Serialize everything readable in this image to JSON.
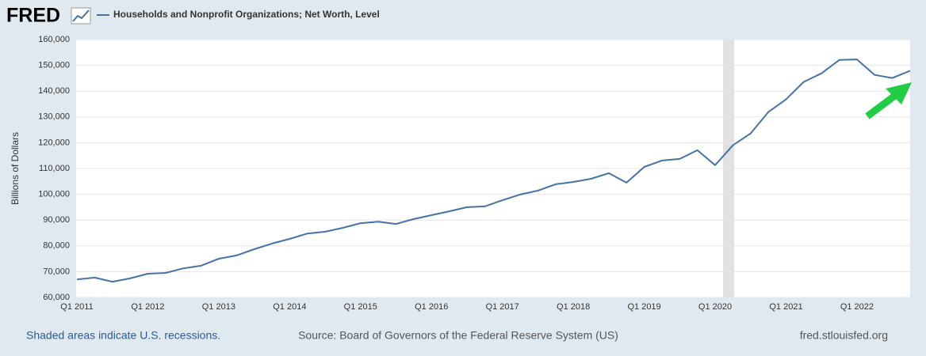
{
  "chart_data": {
    "type": "line",
    "logo": "FRED",
    "series": [
      {
        "name": "Households and Nonprofit Organizations; Net Worth, Level",
        "color": "#4572a7",
        "values": [
          67000,
          67700,
          66100,
          67400,
          69200,
          69500,
          71300,
          72300,
          75000,
          76300,
          78700,
          80900,
          82700,
          84800,
          85500,
          87000,
          88800,
          89400,
          88500,
          90400,
          91900,
          93400,
          95000,
          95300,
          97700,
          99900,
          101400,
          103900,
          104800,
          106000,
          108200,
          104500,
          110600,
          113100,
          113700,
          117100,
          111300,
          119000,
          123600,
          131900,
          136800,
          143600,
          146900,
          152100,
          152300,
          146300,
          145100,
          147900
        ]
      }
    ],
    "categories": [
      "Q1 2011",
      null,
      null,
      null,
      "Q1 2012",
      null,
      null,
      null,
      "Q1 2013",
      null,
      null,
      null,
      "Q1 2014",
      null,
      null,
      null,
      "Q1 2015",
      null,
      null,
      null,
      "Q1 2016",
      null,
      null,
      null,
      "Q1 2017",
      null,
      null,
      null,
      "Q1 2018",
      null,
      null,
      null,
      "Q1 2019",
      null,
      null,
      null,
      "Q1 2020",
      null,
      null,
      null,
      "Q1 2021",
      null,
      null,
      null,
      "Q1 2022",
      null,
      null,
      null
    ],
    "y_label": "Billions of Dollars",
    "ylim": [
      60000,
      160000
    ],
    "yticks": [
      {
        "value": 60000,
        "label": "60,000"
      },
      {
        "value": 70000,
        "label": "70,000"
      },
      {
        "value": 80000,
        "label": "80,000"
      },
      {
        "value": 90000,
        "label": "90,000"
      },
      {
        "value": 100000,
        "label": "100,000"
      },
      {
        "value": 110000,
        "label": "110,000"
      },
      {
        "value": 120000,
        "label": "120,000"
      },
      {
        "value": 130000,
        "label": "130,000"
      },
      {
        "value": 140000,
        "label": "140,000"
      },
      {
        "value": 150000,
        "label": "150,000"
      },
      {
        "value": 160000,
        "label": "160,000"
      }
    ],
    "grid": true,
    "footer": {
      "note": "Shaded areas indicate U.S. recessions.",
      "source": "Source: Board of Governors of the Federal Reserve System (US)",
      "site": "fred.stlouisfed.org"
    }
  }
}
